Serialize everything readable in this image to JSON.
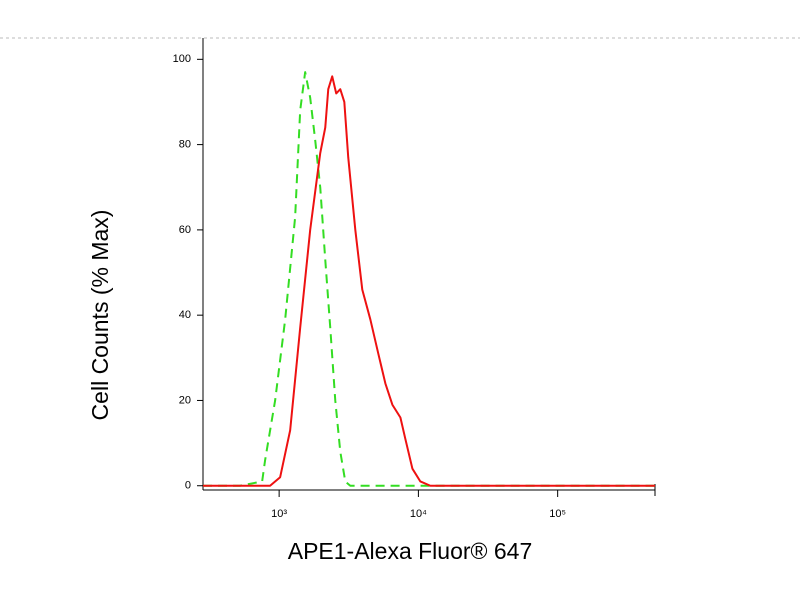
{
  "chart_data": {
    "type": "line",
    "xlabel": "APE1-Alexa Fluor® 647",
    "ylabel": "Cell Counts (% Max)",
    "xscale": "log",
    "xlim": [
      284,
      500000
    ],
    "ylim": [
      -1,
      105
    ],
    "xticks": [
      {
        "value": 1000,
        "label": "10³"
      },
      {
        "value": 10000,
        "label": "10⁴"
      },
      {
        "value": 100000,
        "label": "10⁵"
      }
    ],
    "yticks": [
      0,
      20,
      40,
      60,
      80,
      100
    ],
    "grid": false,
    "series": [
      {
        "color": "#33dd22",
        "dashed": true,
        "x": [
          284,
          524,
          755,
          793,
          936,
          1105,
          1303,
          1416,
          1538,
          1671,
          1816,
          1973,
          2144,
          2329,
          2530,
          2748,
          2985,
          3243,
          500000
        ],
        "values": [
          0,
          0,
          1,
          6,
          20,
          39,
          63,
          88,
          97,
          91,
          81,
          70,
          53,
          37,
          20,
          8,
          1,
          0,
          0
        ]
      },
      {
        "color": "#ee1111",
        "dashed": false,
        "x": [
          284,
          861,
          1017,
          1200,
          1416,
          1671,
          1973,
          2144,
          2253,
          2405,
          2570,
          2748,
          2938,
          3135,
          3524,
          3954,
          4518,
          5152,
          5791,
          6503,
          7427,
          8056,
          9057,
          10330,
          12190,
          16990,
          500000
        ],
        "values": [
          0,
          0,
          2,
          13,
          37,
          60,
          78,
          84,
          93,
          96,
          92,
          93,
          90,
          77,
          60,
          46,
          39,
          31,
          24,
          19,
          16,
          11,
          4,
          1,
          0,
          0,
          0
        ]
      }
    ]
  }
}
